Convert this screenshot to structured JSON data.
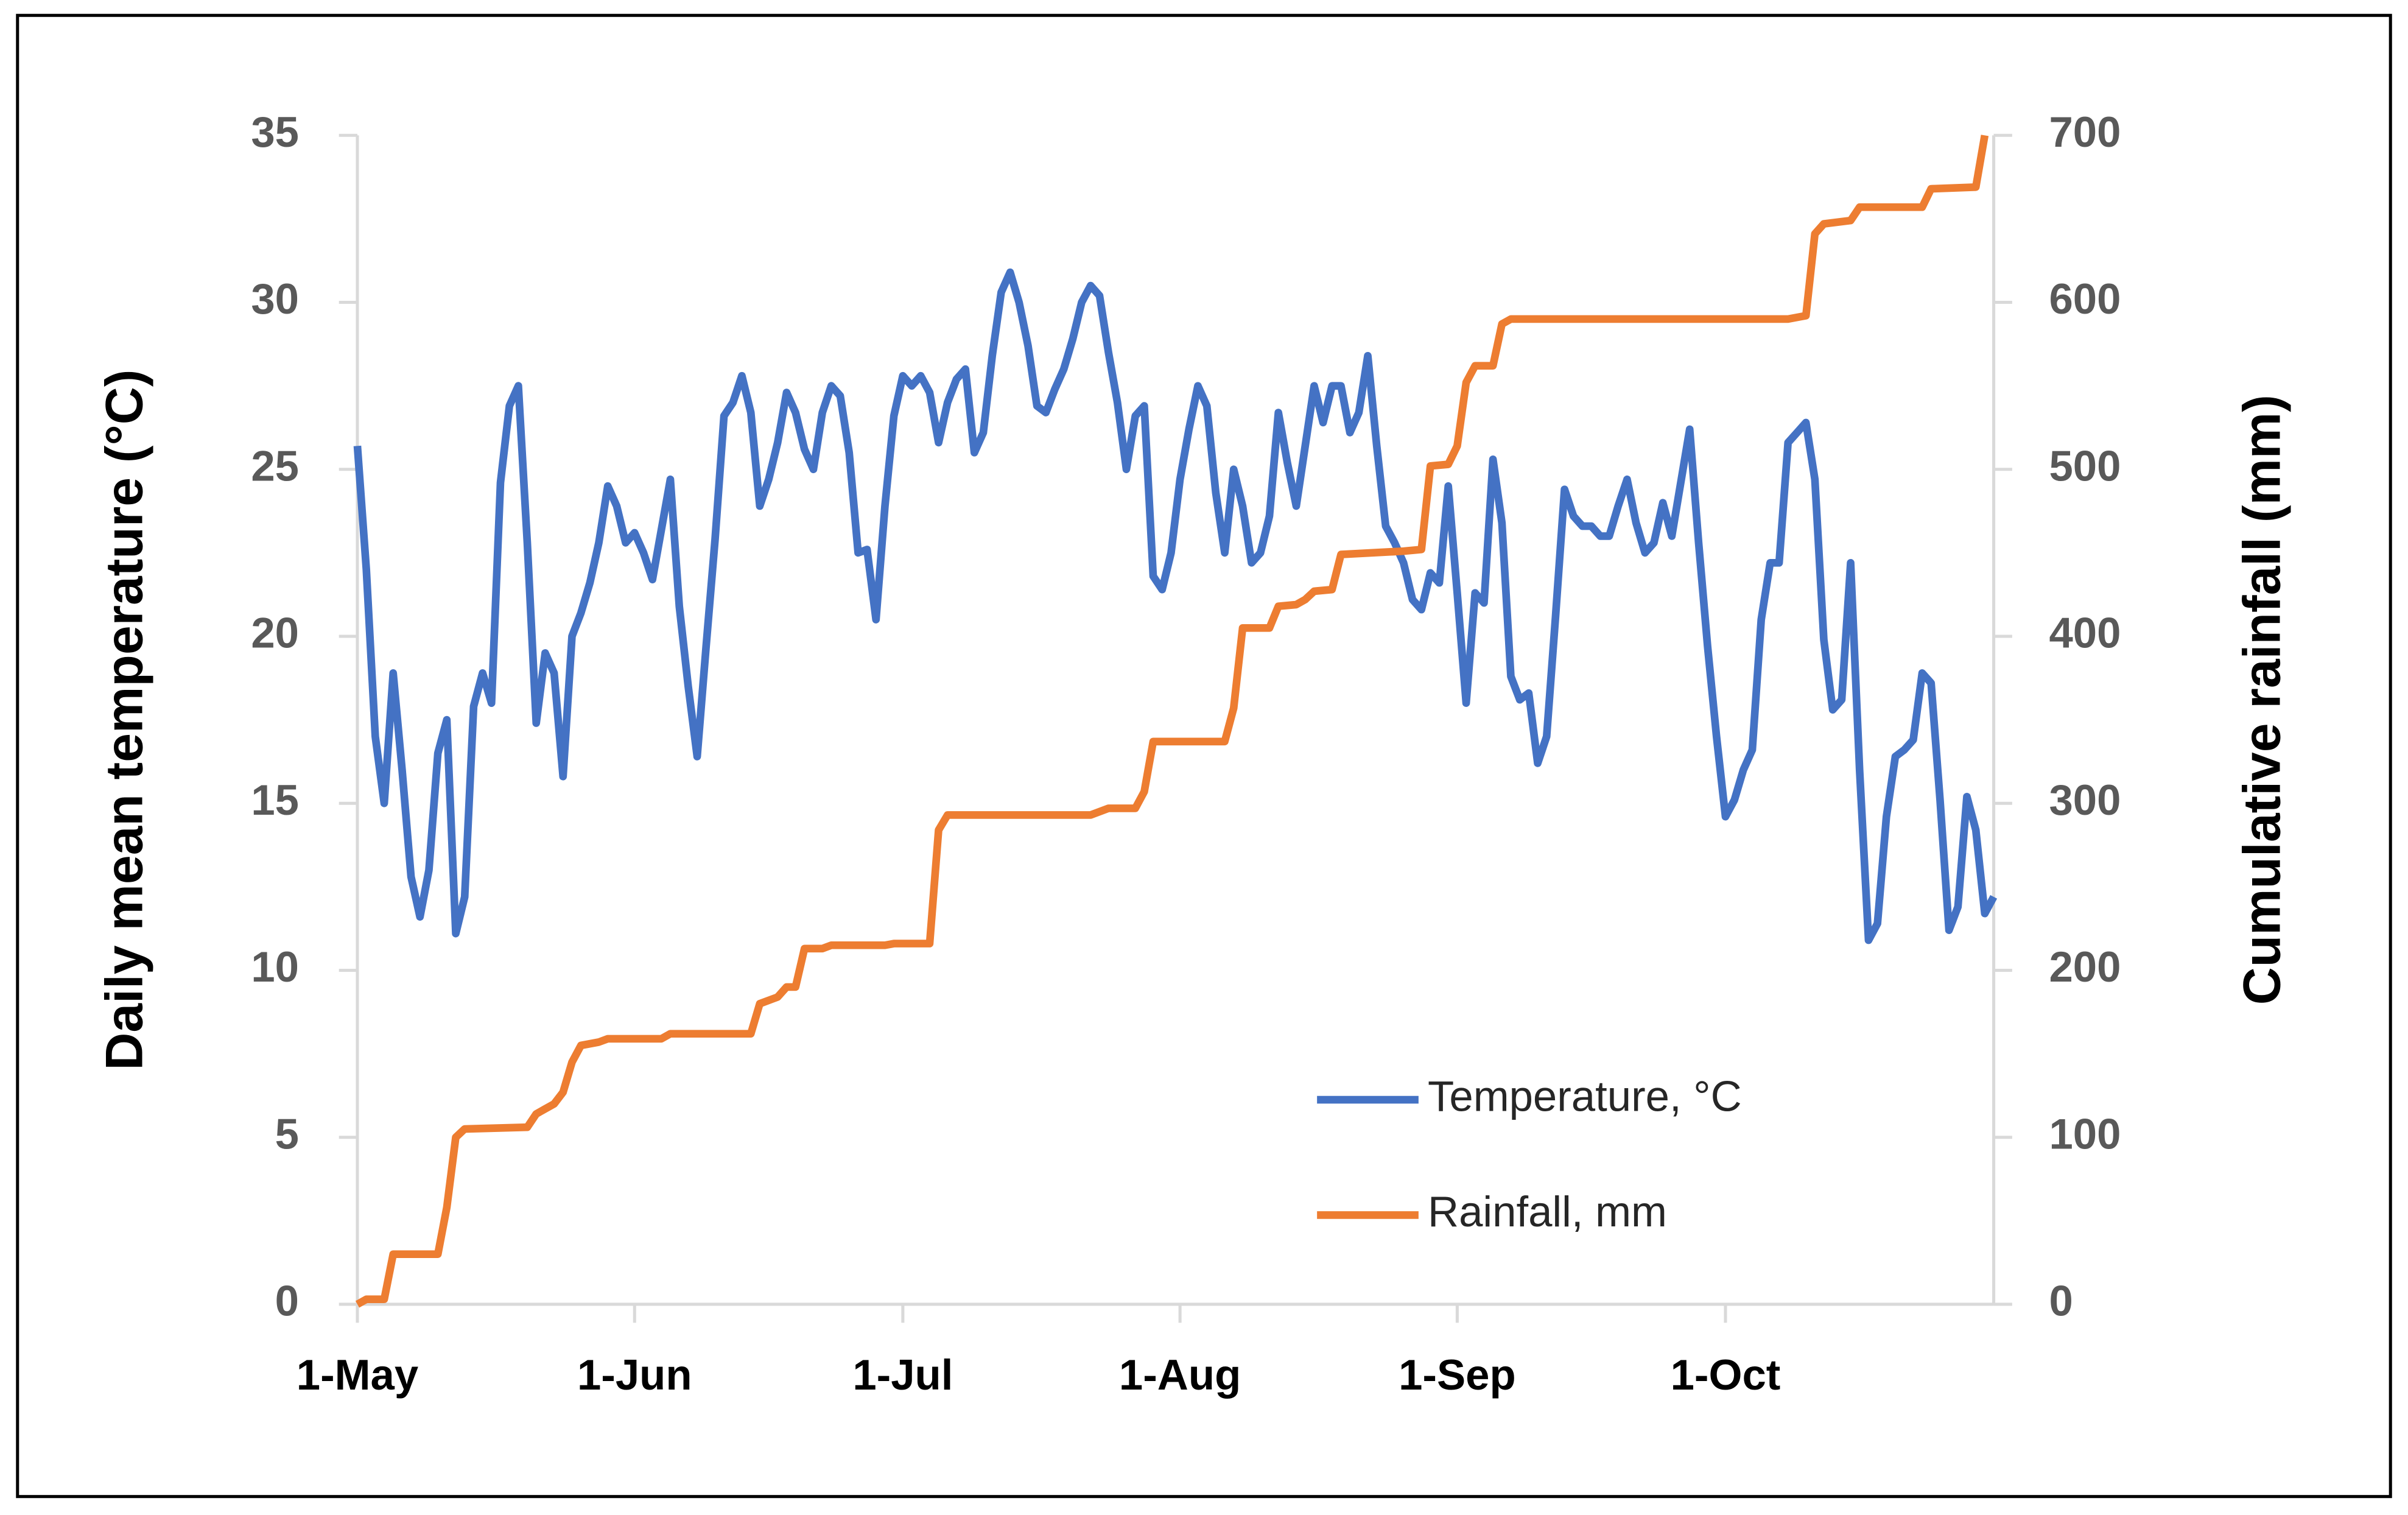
{
  "chart_data": {
    "type": "line",
    "ylabel": "Daily mean temperature (°C)",
    "y2label": "Cumulative rainfall (mm)",
    "xlim": [
      0,
      183
    ],
    "xticks": [
      {
        "value": 0,
        "label": "1-May"
      },
      {
        "value": 31,
        "label": "1-Jun"
      },
      {
        "value": 61,
        "label": "1-Jul"
      },
      {
        "value": 92,
        "label": "1-Aug"
      },
      {
        "value": 123,
        "label": "1-Sep"
      },
      {
        "value": 153,
        "label": "1-Oct"
      }
    ],
    "ylim": [
      0,
      35
    ],
    "yticks": [
      0,
      5,
      10,
      15,
      20,
      25,
      30,
      35
    ],
    "y2lim": [
      0,
      700
    ],
    "y2ticks": [
      0,
      100,
      200,
      300,
      400,
      500,
      600,
      700
    ],
    "grid": false,
    "legend": "lower right",
    "series": [
      {
        "name": "Temperature, °C",
        "color": "#4472c4",
        "axis": "y",
        "x": [
          0,
          1,
          2,
          3,
          4,
          5,
          6,
          7,
          8,
          9,
          10,
          11,
          12,
          13,
          14,
          15,
          16,
          17,
          18,
          19,
          20,
          21,
          22,
          23,
          24,
          25,
          26,
          27,
          28,
          29,
          30,
          31,
          32,
          33,
          34,
          35,
          36,
          37,
          38,
          39,
          40,
          41,
          42,
          43,
          44,
          45,
          46,
          47,
          48,
          49,
          50,
          51,
          52,
          53,
          54,
          55,
          56,
          57,
          58,
          59,
          60,
          61,
          62,
          63,
          64,
          65,
          66,
          67,
          68,
          69,
          70,
          71,
          72,
          73,
          74,
          75,
          76,
          77,
          78,
          79,
          80,
          81,
          82,
          83,
          84,
          85,
          86,
          87,
          88,
          89,
          90,
          91,
          92,
          93,
          94,
          95,
          96,
          97,
          98,
          99,
          100,
          101,
          102,
          103,
          104,
          105,
          106,
          107,
          108,
          109,
          110,
          111,
          112,
          113,
          114,
          115,
          116,
          117,
          118,
          119,
          120,
          121,
          122,
          123,
          124,
          125,
          126,
          127,
          128,
          129,
          130,
          131,
          132,
          133,
          134,
          135,
          136,
          137,
          138,
          139,
          140,
          141,
          142,
          143,
          144,
          145,
          146,
          147,
          148,
          149,
          150,
          151,
          152,
          153,
          154,
          155,
          156,
          157,
          158,
          159,
          160,
          161,
          162,
          163,
          164,
          165,
          166,
          167,
          168,
          169,
          170,
          171,
          172,
          173,
          174,
          175,
          176,
          177,
          178,
          179,
          180,
          181,
          182,
          183
        ],
        "values": [
          25.7,
          22.0,
          17.0,
          15.0,
          18.9,
          16.0,
          12.8,
          11.6,
          13.0,
          16.5,
          17.5,
          11.1,
          12.2,
          17.9,
          18.9,
          18.0,
          24.6,
          26.9,
          27.5,
          22.8,
          17.4,
          19.5,
          18.9,
          15.8,
          20.0,
          20.7,
          21.6,
          22.8,
          24.5,
          23.9,
          22.8,
          23.1,
          22.5,
          21.7,
          23.2,
          24.7,
          20.9,
          18.5,
          16.4,
          19.7,
          22.9,
          26.6,
          27.0,
          27.8,
          26.7,
          23.9,
          24.7,
          25.8,
          27.3,
          26.7,
          25.6,
          25.0,
          26.7,
          27.5,
          27.2,
          25.5,
          22.5,
          22.6,
          20.5,
          23.9,
          26.6,
          27.8,
          27.5,
          27.8,
          27.3,
          25.8,
          27.0,
          27.7,
          28.0,
          25.5,
          26.1,
          28.4,
          30.3,
          30.9,
          30.0,
          28.7,
          26.9,
          26.7,
          27.4,
          28.0,
          28.9,
          30.0,
          30.5,
          30.2,
          28.5,
          27.0,
          25.0,
          26.6,
          26.9,
          21.8,
          21.4,
          22.5,
          24.7,
          26.2,
          27.5,
          26.9,
          24.3,
          22.5,
          25.0,
          23.9,
          22.2,
          22.5,
          23.6,
          26.7,
          25.2,
          23.9,
          25.7,
          27.5,
          26.4,
          27.5,
          27.5,
          26.1,
          26.7,
          28.4,
          25.7,
          23.3,
          22.8,
          22.2,
          21.1,
          20.8,
          21.9,
          21.6,
          24.5,
          21.3,
          18.0,
          21.3,
          21.0,
          25.3,
          23.4,
          18.8,
          18.1,
          18.3,
          16.2,
          17.0,
          20.6,
          24.4,
          23.6,
          23.3,
          23.3,
          23.0,
          23.0,
          23.9,
          24.7,
          23.4,
          22.5,
          22.8,
          24.0,
          23.0,
          24.6,
          26.2,
          22.8,
          19.7,
          17.0,
          14.6,
          15.1,
          16.0,
          16.6,
          20.5,
          22.2,
          22.2,
          25.8,
          26.1,
          26.4,
          24.7,
          19.9,
          17.8,
          18.1,
          22.2,
          16.0,
          10.9,
          11.4,
          14.6,
          16.4,
          16.6,
          16.9,
          18.9,
          18.6,
          15.1,
          11.2,
          11.9,
          15.2,
          14.2,
          11.7,
          12.2
        ]
      },
      {
        "name": "Rainfall, mm",
        "color": "#ed7d31",
        "axis": "y2",
        "x": [
          0,
          1,
          3,
          4,
          9,
          10,
          11,
          12,
          19,
          20,
          22,
          23,
          24,
          25,
          27,
          28,
          34,
          35,
          44,
          45,
          47,
          48,
          49,
          50,
          52,
          53,
          59,
          60,
          64,
          65,
          66,
          82,
          83,
          84,
          87,
          88,
          89,
          97,
          98,
          99,
          102,
          103,
          105,
          106,
          107,
          109,
          110,
          117,
          119,
          120,
          122,
          123,
          124,
          125,
          127,
          128,
          129,
          135,
          160,
          162,
          163,
          164,
          167,
          168,
          175,
          176,
          181,
          182
        ],
        "values": [
          0,
          3,
          3,
          30,
          30,
          58,
          100,
          105,
          106,
          114,
          120,
          127,
          145,
          155,
          157,
          159,
          159,
          162,
          162,
          180,
          184,
          190,
          190,
          213,
          213,
          215,
          215,
          216,
          216,
          284,
          293,
          293,
          295,
          297,
          297,
          307,
          337,
          337,
          357,
          405,
          405,
          418,
          419,
          422,
          427,
          428,
          449,
          451,
          452,
          502,
          503,
          514,
          552,
          562,
          562,
          587,
          590,
          590,
          590,
          592,
          641,
          647,
          649,
          657,
          657,
          668,
          669,
          700
        ]
      }
    ]
  }
}
